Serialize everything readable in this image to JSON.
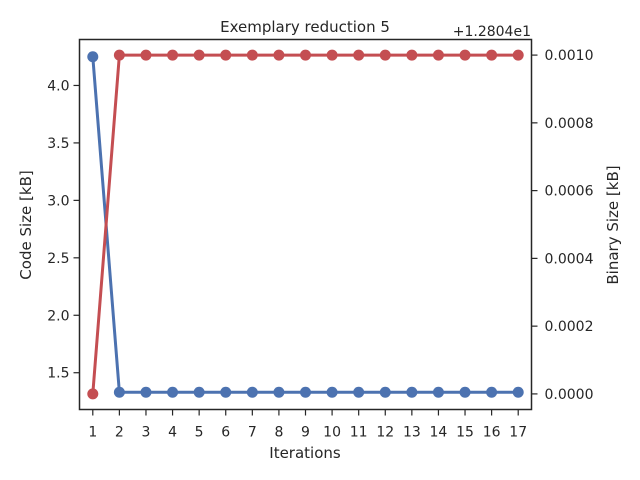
{
  "chart_data": {
    "type": "line",
    "title": "Exemplary reduction 5",
    "xlabel": "Iterations",
    "ylabel_left": "Code Size [kB]",
    "ylabel_right": "Binary Size [kB]",
    "right_axis_offset": "+1.2804e1",
    "x": [
      1,
      2,
      3,
      4,
      5,
      6,
      7,
      8,
      9,
      10,
      11,
      12,
      13,
      14,
      15,
      16,
      17
    ],
    "xlim": [
      0.5,
      17.5
    ],
    "ylim_left": [
      1.18,
      4.4
    ],
    "ylim_right": [
      -4.6e-05,
      0.001046
    ],
    "yticks_left": [
      "1.5",
      "2.0",
      "2.5",
      "3.0",
      "3.5",
      "4.0"
    ],
    "yticks_left_values": [
      1.5,
      2.0,
      2.5,
      3.0,
      3.5,
      4.0
    ],
    "yticks_right": [
      "0.0000",
      "0.0002",
      "0.0004",
      "0.0006",
      "0.0008",
      "0.0010"
    ],
    "yticks_right_values": [
      0.0,
      0.0002,
      0.0004,
      0.0006,
      0.0008,
      0.001
    ],
    "grid": false,
    "series": [
      {
        "axis": "left",
        "color": "#4c72b0",
        "values": [
          4.25,
          1.33,
          1.33,
          1.33,
          1.33,
          1.33,
          1.33,
          1.33,
          1.33,
          1.33,
          1.33,
          1.33,
          1.33,
          1.33,
          1.33,
          1.33,
          1.33
        ]
      },
      {
        "axis": "right",
        "color": "#c44e52",
        "values": [
          0.0,
          0.001,
          0.001,
          0.001,
          0.001,
          0.001,
          0.001,
          0.001,
          0.001,
          0.001,
          0.001,
          0.001,
          0.001,
          0.001,
          0.001,
          0.001,
          0.001
        ]
      }
    ]
  }
}
